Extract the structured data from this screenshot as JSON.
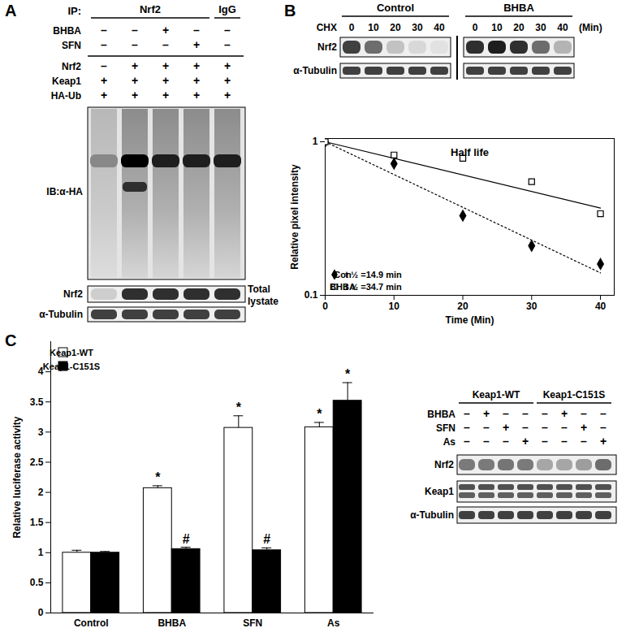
{
  "panel_labels": [
    "A",
    "B",
    "C"
  ],
  "panel_A": {
    "ip_label": "IP:",
    "ip_groups": [
      {
        "label": "Nrf2",
        "lanes": 4
      },
      {
        "label": "IgG",
        "lanes": 1
      }
    ],
    "rows": [
      {
        "label": "BHBA",
        "signs": [
          "–",
          "–",
          "+",
          "–",
          "–"
        ]
      },
      {
        "label": "SFN",
        "signs": [
          "–",
          "–",
          "–",
          "+",
          "–"
        ]
      },
      {
        "label": "Nrf2",
        "signs": [
          "–",
          "+",
          "+",
          "+",
          "+"
        ]
      },
      {
        "label": "Keap1",
        "signs": [
          "+",
          "+",
          "+",
          "+",
          "+"
        ]
      },
      {
        "label": "HA-Ub",
        "signs": [
          "+",
          "+",
          "+",
          "+",
          "+"
        ]
      }
    ],
    "blot_label": "IB:α-HA",
    "lysate_rows": [
      "Nrf2",
      "α-Tubulin"
    ],
    "lysate_label": "Total lystate"
  },
  "panel_B_blot": {
    "time_label": "CHX",
    "time_unit": "(Min)",
    "groups": [
      {
        "label": "Control",
        "times": [
          0,
          10,
          20,
          30,
          40
        ]
      },
      {
        "label": "BHBA",
        "times": [
          0,
          10,
          20,
          30,
          40
        ]
      }
    ],
    "rows": [
      "Nrf2",
      "α-Tubulin"
    ]
  },
  "panel_C_blot": {
    "groups": [
      {
        "label": "Keap1-WT",
        "lanes": 4
      },
      {
        "label": "Keap1-C151S",
        "lanes": 4
      }
    ],
    "rows": [
      {
        "label": "BHBA",
        "signs": [
          "–",
          "+",
          "–",
          "–",
          "–",
          "+",
          "–",
          "–"
        ]
      },
      {
        "label": "SFN",
        "signs": [
          "–",
          "–",
          "+",
          "–",
          "–",
          "–",
          "+",
          "–"
        ]
      },
      {
        "label": "As",
        "signs": [
          "–",
          "–",
          "–",
          "+",
          "–",
          "–",
          "–",
          "+"
        ]
      }
    ],
    "bands": [
      "Nrf2",
      "Keap1",
      "α-Tubulin"
    ]
  },
  "chart_data": [
    {
      "type": "scatter",
      "title": "Half life",
      "x_label": "Time (Min)",
      "y_label": "Relative pixel intensity",
      "log": "y",
      "xlim": [
        0,
        42
      ],
      "xticks": [
        0,
        10,
        20,
        30,
        40
      ],
      "ylim": [
        0.1,
        1.05
      ],
      "yticks": [
        0.1,
        1
      ],
      "grid": false,
      "legend": "bottom-left",
      "series": [
        {
          "name": "Con",
          "annotation": "t ½ =14.9 min",
          "color": "#000000",
          "marker": "diamond",
          "line_style": "dotted",
          "x": [
            0,
            10,
            20,
            30,
            40
          ],
          "values": [
            1,
            0.72,
            0.33,
            0.21,
            0.16
          ],
          "trend": {
            "x": [
              0,
              40
            ],
            "values": [
              1,
              0.14
            ]
          }
        },
        {
          "name": "BHBA",
          "annotation": "t ½ =34.7 min",
          "color": "#000000",
          "marker": "open_square",
          "line_style": "solid",
          "x": [
            0,
            10,
            20,
            30,
            40
          ],
          "values": [
            1,
            0.82,
            0.78,
            0.55,
            0.34
          ],
          "trend": {
            "x": [
              0,
              40
            ],
            "values": [
              1,
              0.37
            ]
          }
        }
      ]
    },
    {
      "type": "bar",
      "y_label": "Relative luciferase activity",
      "categories": [
        "Control",
        "BHBA",
        "SFN",
        "As"
      ],
      "ylim": [
        0,
        4.5
      ],
      "yticks": [
        0,
        0.5,
        1,
        1.5,
        2,
        2.5,
        3,
        3.5,
        4
      ],
      "grid": false,
      "legend": "top-left",
      "series": [
        {
          "name": "Keap1-WT",
          "color": "#ffffff",
          "values": [
            1,
            2.07,
            3.07,
            3.08
          ],
          "errors": [
            0.04,
            0.04,
            0.2,
            0.08
          ],
          "annotations": [
            null,
            "*",
            "*",
            "*"
          ]
        },
        {
          "name": "Keap1-C151S",
          "color": "#000000",
          "values": [
            1,
            1.06,
            1.04,
            3.52
          ],
          "errors": [
            0.02,
            0.03,
            0.04,
            0.3
          ],
          "annotations": [
            null,
            "#",
            "#",
            "*"
          ]
        }
      ]
    }
  ]
}
